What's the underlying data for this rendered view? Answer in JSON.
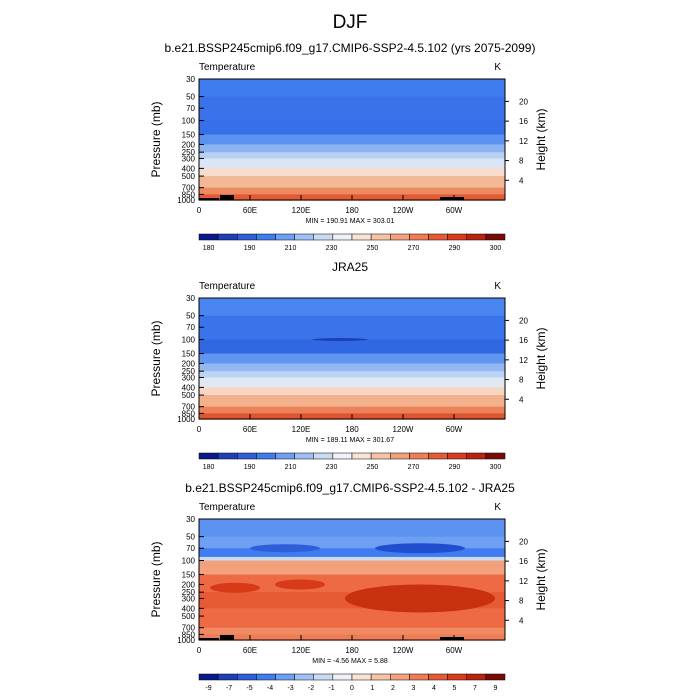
{
  "page_title": "DJF",
  "chart_data": [
    {
      "type": "heatmap",
      "title": "b.e21.BSSP245cmip6.f09_g17.CMIP6-SSP2-4.5.102 (yrs 2075-2099)",
      "variable": "Temperature",
      "units": "K",
      "ylabel": "Pressure (mb)",
      "ylabel_right": "Height (km)",
      "x_ticks": [
        "0",
        "60E",
        "120E",
        "180",
        "120W",
        "60W"
      ],
      "y_ticks": [
        "30",
        "50",
        "70",
        "100",
        "150",
        "200",
        "250",
        "300",
        "400",
        "500",
        "700",
        "850",
        "1000"
      ],
      "height_ticks": [
        "20",
        "16",
        "12",
        "8",
        "4"
      ],
      "stats": "MIN = 190.91   MAX = 303.01",
      "colorbar_labels": [
        "180",
        "190",
        "210",
        "230",
        "250",
        "270",
        "290",
        "300"
      ],
      "colorbar_colors": [
        "#0b1a8a",
        "#1f3fb8",
        "#2f5fd8",
        "#3f7cf0",
        "#6d9ff2",
        "#9ec0f4",
        "#c9dbf2",
        "#eef1f6",
        "#f9e2d6",
        "#f7c2a6",
        "#f3a07c",
        "#ee7c55",
        "#e65a35",
        "#d93c1c",
        "#b82410",
        "#7a0a04"
      ],
      "profile": [
        {
          "p": 30,
          "c": "#3f7cf0"
        },
        {
          "p": 50,
          "c": "#3a72ea"
        },
        {
          "p": 100,
          "c": "#3570e8"
        },
        {
          "p": 150,
          "c": "#5b92ef"
        },
        {
          "p": 200,
          "c": "#8cb3f2"
        },
        {
          "p": 250,
          "c": "#b6cff3"
        },
        {
          "p": 300,
          "c": "#dbe5f3"
        },
        {
          "p": 400,
          "c": "#f7dccd"
        },
        {
          "p": 500,
          "c": "#f3b896"
        },
        {
          "p": 700,
          "c": "#ee8a62"
        },
        {
          "p": 850,
          "c": "#e35a34"
        },
        {
          "p": 1000,
          "c": "#c93a1a"
        }
      ]
    },
    {
      "type": "heatmap",
      "title": "JRA25",
      "variable": "Temperature",
      "units": "K",
      "ylabel": "Pressure (mb)",
      "ylabel_right": "Height (km)",
      "x_ticks": [
        "0",
        "60E",
        "120E",
        "180",
        "120W",
        "60W"
      ],
      "y_ticks": [
        "30",
        "50",
        "70",
        "100",
        "150",
        "200",
        "250",
        "300",
        "400",
        "500",
        "700",
        "850",
        "1000"
      ],
      "height_ticks": [
        "20",
        "16",
        "12",
        "8",
        "4"
      ],
      "stats": "MIN = 189.11   MAX = 301.67",
      "colorbar_labels": [
        "180",
        "190",
        "210",
        "230",
        "250",
        "270",
        "290",
        "300"
      ],
      "colorbar_colors": [
        "#0b1a8a",
        "#1f3fb8",
        "#2f5fd8",
        "#3f7cf0",
        "#6d9ff2",
        "#9ec0f4",
        "#c9dbf2",
        "#eef1f6",
        "#f9e2d6",
        "#f7c2a6",
        "#f3a07c",
        "#ee7c55",
        "#e65a35",
        "#d93c1c",
        "#b82410",
        "#7a0a04"
      ],
      "profile": [
        {
          "p": 30,
          "c": "#4a86f0"
        },
        {
          "p": 50,
          "c": "#3a74ea"
        },
        {
          "p": 100,
          "c": "#3068e4"
        },
        {
          "p": 150,
          "c": "#6096ef"
        },
        {
          "p": 200,
          "c": "#93b8f2"
        },
        {
          "p": 250,
          "c": "#bdd3f3"
        },
        {
          "p": 300,
          "c": "#e0e8f4"
        },
        {
          "p": 400,
          "c": "#f7d5c3"
        },
        {
          "p": 500,
          "c": "#f2b08c"
        },
        {
          "p": 700,
          "c": "#ec8258"
        },
        {
          "p": 850,
          "c": "#df5430"
        },
        {
          "p": 1000,
          "c": "#c43516"
        }
      ]
    },
    {
      "type": "heatmap",
      "title": "b.e21.BSSP245cmip6.f09_g17.CMIP6-SSP2-4.5.102 - JRA25",
      "variable": "Temperature",
      "units": "K",
      "ylabel": "Pressure (mb)",
      "ylabel_right": "Height (km)",
      "x_ticks": [
        "0",
        "60E",
        "120E",
        "180",
        "120W",
        "60W"
      ],
      "y_ticks": [
        "30",
        "50",
        "70",
        "100",
        "150",
        "200",
        "250",
        "300",
        "400",
        "500",
        "700",
        "850",
        "1000"
      ],
      "height_ticks": [
        "20",
        "16",
        "12",
        "8",
        "4"
      ],
      "stats": "MIN =  -4.56   MAX =   5.88",
      "colorbar_labels": [
        "-9",
        "-7",
        "-5",
        "-4",
        "-3",
        "-2",
        "-1",
        "0",
        "1",
        "2",
        "3",
        "4",
        "5",
        "7",
        "9"
      ],
      "colorbar_colors": [
        "#0b1a8a",
        "#1f3fb8",
        "#2f5fd8",
        "#3f7cf0",
        "#6d9ff2",
        "#9ec0f4",
        "#c9dbf2",
        "#eef1f6",
        "#f9e2d6",
        "#f7c2a6",
        "#f3a07c",
        "#ee7c55",
        "#e65a35",
        "#d93c1c",
        "#b82410",
        "#7a0a04"
      ],
      "profile": [
        {
          "p": 30,
          "c": "#5b92ef"
        },
        {
          "p": 50,
          "c": "#6d9ff2"
        },
        {
          "p": 70,
          "c": "#3f7cf0"
        },
        {
          "p": 90,
          "c": "#c9dbf2"
        },
        {
          "p": 100,
          "c": "#f3a07c"
        },
        {
          "p": 150,
          "c": "#ee6a44"
        },
        {
          "p": 250,
          "c": "#e65a35"
        },
        {
          "p": 400,
          "c": "#ee6a44"
        },
        {
          "p": 700,
          "c": "#f08a62"
        },
        {
          "p": 850,
          "c": "#ee7c55"
        },
        {
          "p": 1000,
          "c": "#e8643c"
        }
      ]
    }
  ]
}
